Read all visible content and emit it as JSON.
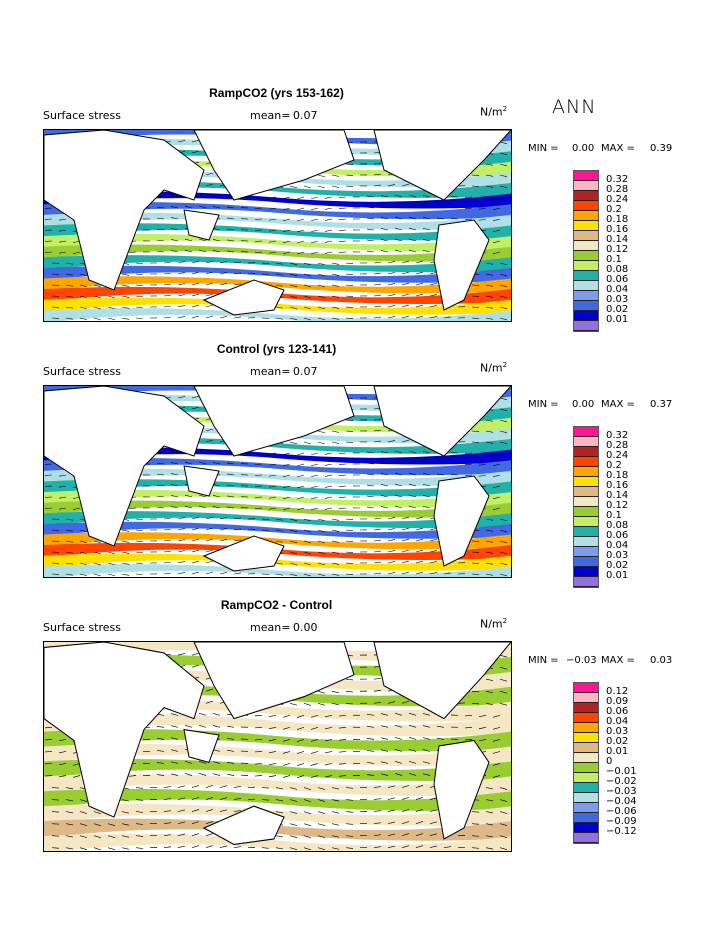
{
  "season_label": "ANN",
  "panels": [
    {
      "title": "RampCO2 (yrs 153-162)",
      "variable": "Surface stress",
      "mean_label": "mean=",
      "mean": "0.07",
      "units": "N/m",
      "units_exp": "2",
      "min_label": "MIN =",
      "min": "0.00",
      "max_label": "MAX =",
      "max": "0.39",
      "levels": [
        "0.32",
        "0.28",
        "0.24",
        "0.2",
        "0.18",
        "0.16",
        "0.14",
        "0.12",
        "0.1",
        "0.08",
        "0.06",
        "0.04",
        "0.03",
        "0.02",
        "0.01"
      ]
    },
    {
      "title": "Control (yrs 123-141)",
      "variable": "Surface stress",
      "mean_label": "mean=",
      "mean": "0.07",
      "units": "N/m",
      "units_exp": "2",
      "min_label": "MIN =",
      "min": "0.00",
      "max_label": "MAX =",
      "max": "0.37",
      "levels": [
        "0.32",
        "0.28",
        "0.24",
        "0.2",
        "0.18",
        "0.16",
        "0.14",
        "0.12",
        "0.1",
        "0.08",
        "0.06",
        "0.04",
        "0.03",
        "0.02",
        "0.01"
      ]
    },
    {
      "title": "RampCO2 - Control",
      "variable": "Surface stress",
      "mean_label": "mean=",
      "mean": "0.00",
      "units": "N/m",
      "units_exp": "2",
      "min_label": "MIN =",
      "min": "−0.03",
      "max_label": "MAX =",
      "max": "0.03",
      "levels": [
        "0.12",
        "0.09",
        "0.06",
        "0.04",
        "0.03",
        "0.02",
        "0.01",
        "0",
        "−0.01",
        "−0.02",
        "−0.03",
        "−0.04",
        "−0.06",
        "−0.09",
        "−0.12"
      ]
    }
  ],
  "colorbar_colors": [
    "#ff1493",
    "#ffb6c1",
    "#b22222",
    "#ff4500",
    "#ffa500",
    "#ffe000",
    "#deb887",
    "#f5e6c4",
    "#9acd32",
    "#c1f066",
    "#20b2aa",
    "#b0e0e6",
    "#7b9cf0",
    "#4169e1",
    "#0000cd",
    "#9370db"
  ]
}
